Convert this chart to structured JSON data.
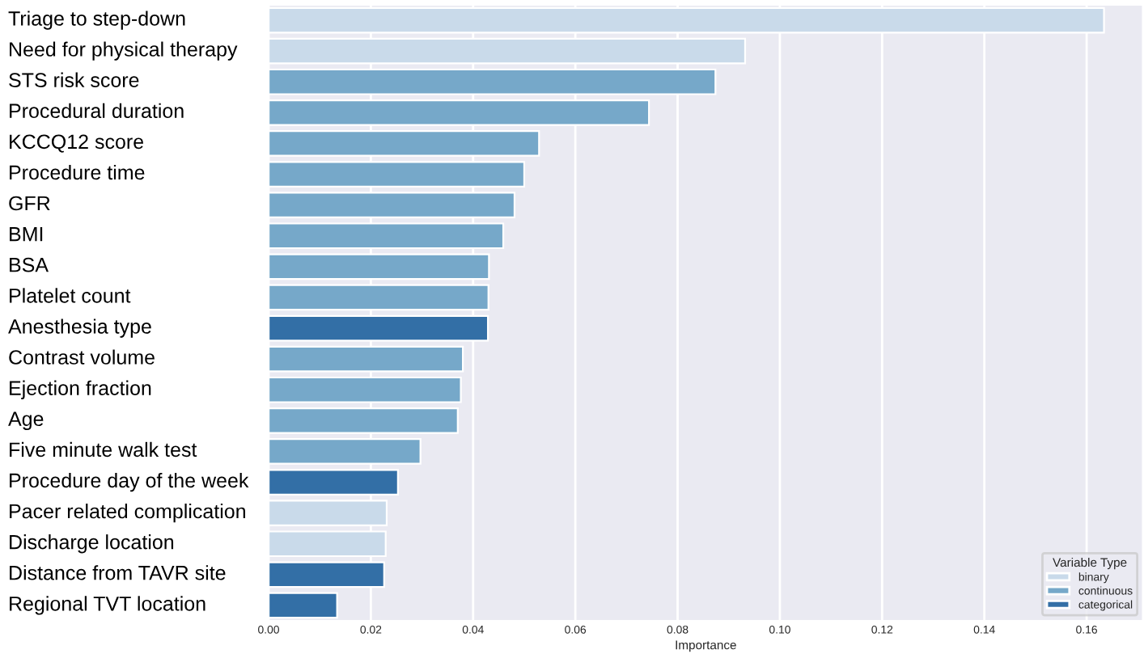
{
  "chart_data": {
    "type": "bar",
    "orientation": "horizontal",
    "xlabel": "Importance",
    "legend_title": "Variable Type",
    "legend": "bottom right",
    "grid": "x",
    "categories": [
      "Triage to step-down",
      "Need for physical therapy",
      "STS risk score",
      "Procedural duration",
      "KCCQ12 score",
      "Procedure time",
      "GFR",
      "BMI",
      "BSA",
      "Platelet count",
      "Anesthesia type",
      "Contrast volume",
      "Ejection fraction",
      "Age",
      "Five minute walk test",
      "Procedure day of the week",
      "Pacer related complication",
      "Discharge location",
      "Distance from TAVR site",
      "Regional TVT location"
    ],
    "series": [
      {
        "name": "binary",
        "color": "#c9daea",
        "values": [
          0.1634,
          0.0932,
          null,
          null,
          null,
          null,
          null,
          null,
          null,
          null,
          null,
          null,
          null,
          null,
          null,
          null,
          0.0231,
          0.0229,
          null,
          null
        ]
      },
      {
        "name": "continuous",
        "color": "#76a8c9",
        "values": [
          null,
          null,
          0.0874,
          0.0744,
          0.0529,
          0.05,
          0.0481,
          0.0459,
          0.0431,
          0.043,
          null,
          0.038,
          0.0376,
          0.037,
          0.0297,
          null,
          null,
          null,
          null,
          null
        ]
      },
      {
        "name": "categorical",
        "color": "#336fa6",
        "values": [
          null,
          null,
          null,
          null,
          null,
          null,
          null,
          null,
          null,
          null,
          0.0429,
          null,
          null,
          null,
          null,
          0.0253,
          null,
          null,
          0.0226,
          0.0134
        ]
      }
    ],
    "xlim": [
      0,
      0.171
    ],
    "xticks": [
      {
        "value": 0,
        "label": "0.00"
      },
      {
        "value": 0.02,
        "label": "0.02"
      },
      {
        "value": 0.04,
        "label": "0.04"
      },
      {
        "value": 0.06,
        "label": "0.06"
      },
      {
        "value": 0.08,
        "label": "0.08"
      },
      {
        "value": 0.1,
        "label": "0.10"
      },
      {
        "value": 0.12,
        "label": "0.12"
      },
      {
        "value": 0.14,
        "label": "0.14"
      },
      {
        "value": 0.16,
        "label": "0.16"
      }
    ]
  }
}
